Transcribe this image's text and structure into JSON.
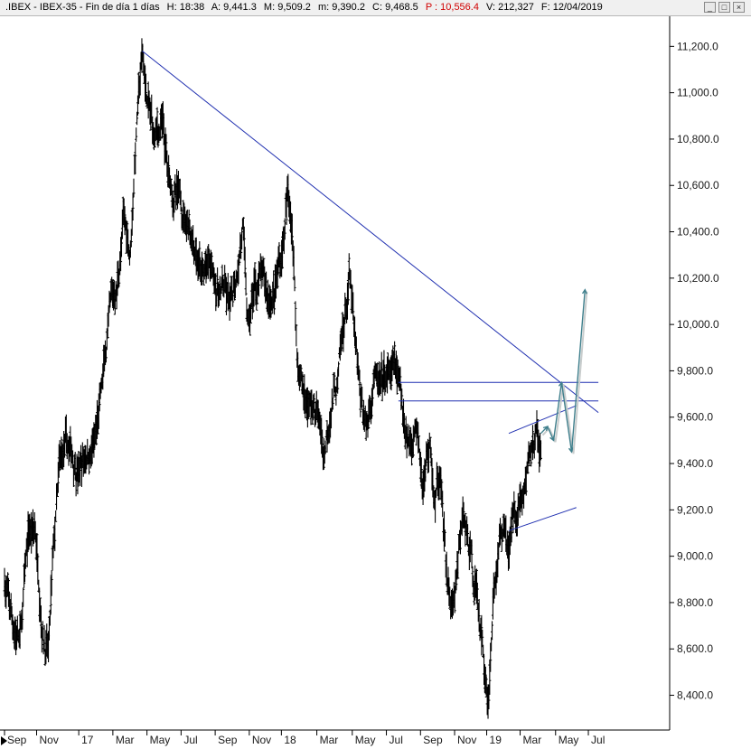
{
  "header": {
    "symbol": ".IBEX - IBEX-35 - Fin de día 1 días",
    "high": "H: 18:38",
    "open": "A: 9,441.3",
    "max": "M: 9,509.2",
    "min": "m: 9,390.2",
    "close": "C: 9,468.5",
    "p": "P : 10,556.4",
    "volume": "V: 212,327",
    "date": "F: 12/04/2019"
  },
  "window_controls": {
    "minimize": "_",
    "maximize": "□",
    "close": "×"
  },
  "chart_data": {
    "type": "bar",
    "subtype": "ohlc",
    "ylim": [
      8250,
      11330
    ],
    "y_ticks": [
      "11,200.0",
      "11,000.0",
      "10,800.0",
      "10,600.0",
      "10,400.0",
      "10,200.0",
      "10,000.0",
      "9,800.0",
      "9,600.0",
      "9,400.0",
      "9,200.0",
      "9,000.0",
      "8,800.0",
      "8,600.0",
      "8,400.0"
    ],
    "y_tick_values": [
      11200,
      11000,
      10800,
      10600,
      10400,
      10200,
      10000,
      9800,
      9600,
      9400,
      9200,
      9000,
      8800,
      8600,
      8400
    ],
    "x_ticks": [
      "Sep",
      "Nov",
      "17",
      "Mar",
      "May",
      "Jul",
      "Sep",
      "Nov",
      "18",
      "Mar",
      "May",
      "Jul",
      "Sep",
      "Nov",
      "19",
      "Mar",
      "May",
      "Jul"
    ],
    "x_tick_pos": [
      0.0,
      0.048,
      0.111,
      0.162,
      0.213,
      0.264,
      0.315,
      0.366,
      0.414,
      0.467,
      0.52,
      0.571,
      0.622,
      0.673,
      0.721,
      0.771,
      0.824,
      0.873
    ],
    "price_path": [
      [
        0.0,
        8900
      ],
      [
        0.012,
        8700
      ],
      [
        0.024,
        8650
      ],
      [
        0.036,
        9100
      ],
      [
        0.046,
        9100
      ],
      [
        0.058,
        8680
      ],
      [
        0.066,
        8600
      ],
      [
        0.072,
        8950
      ],
      [
        0.082,
        9350
      ],
      [
        0.09,
        9450
      ],
      [
        0.1,
        9420
      ],
      [
        0.112,
        9380
      ],
      [
        0.122,
        9450
      ],
      [
        0.135,
        9480
      ],
      [
        0.148,
        9760
      ],
      [
        0.158,
        10050
      ],
      [
        0.168,
        10150
      ],
      [
        0.178,
        10450
      ],
      [
        0.188,
        10320
      ],
      [
        0.198,
        10900
      ],
      [
        0.206,
        11150
      ],
      [
        0.214,
        10950
      ],
      [
        0.224,
        10800
      ],
      [
        0.236,
        10850
      ],
      [
        0.246,
        10600
      ],
      [
        0.256,
        10550
      ],
      [
        0.266,
        10500
      ],
      [
        0.276,
        10450
      ],
      [
        0.286,
        10350
      ],
      [
        0.296,
        10200
      ],
      [
        0.306,
        10250
      ],
      [
        0.318,
        10150
      ],
      [
        0.328,
        10150
      ],
      [
        0.338,
        10050
      ],
      [
        0.346,
        10200
      ],
      [
        0.356,
        10450
      ],
      [
        0.364,
        9950
      ],
      [
        0.374,
        10150
      ],
      [
        0.384,
        10200
      ],
      [
        0.394,
        10100
      ],
      [
        0.404,
        10150
      ],
      [
        0.414,
        10300
      ],
      [
        0.424,
        10550
      ],
      [
        0.43,
        10450
      ],
      [
        0.438,
        9850
      ],
      [
        0.448,
        9700
      ],
      [
        0.458,
        9650
      ],
      [
        0.468,
        9600
      ],
      [
        0.478,
        9450
      ],
      [
        0.488,
        9680
      ],
      [
        0.498,
        9750
      ],
      [
        0.508,
        10000
      ],
      [
        0.516,
        10200
      ],
      [
        0.524,
        9900
      ],
      [
        0.532,
        9650
      ],
      [
        0.542,
        9550
      ],
      [
        0.552,
        9800
      ],
      [
        0.562,
        9700
      ],
      [
        0.572,
        9750
      ],
      [
        0.584,
        9800
      ],
      [
        0.594,
        9650
      ],
      [
        0.606,
        9500
      ],
      [
        0.618,
        9600
      ],
      [
        0.626,
        9350
      ],
      [
        0.636,
        9500
      ],
      [
        0.644,
        9200
      ],
      [
        0.652,
        9400
      ],
      [
        0.66,
        8950
      ],
      [
        0.668,
        8750
      ],
      [
        0.676,
        8900
      ],
      [
        0.686,
        9150
      ],
      [
        0.696,
        9000
      ],
      [
        0.704,
        8900
      ],
      [
        0.712,
        8700
      ],
      [
        0.718,
        8500
      ],
      [
        0.724,
        8400
      ],
      [
        0.73,
        8800
      ],
      [
        0.738,
        9000
      ],
      [
        0.746,
        9150
      ],
      [
        0.754,
        9050
      ],
      [
        0.762,
        9200
      ],
      [
        0.77,
        9250
      ],
      [
        0.778,
        9300
      ],
      [
        0.786,
        9450
      ],
      [
        0.794,
        9500
      ],
      [
        0.802,
        9450
      ]
    ],
    "projection_path": [
      [
        0.802,
        9530
      ],
      [
        0.812,
        9560
      ],
      [
        0.821,
        9500
      ],
      [
        0.833,
        9750
      ],
      [
        0.848,
        9450
      ],
      [
        0.868,
        10150
      ]
    ],
    "trendlines": [
      {
        "x1": 0.206,
        "y1": 11180,
        "x2": 0.888,
        "y2": 9620
      },
      {
        "x1": 0.589,
        "y1": 9750,
        "x2": 0.888,
        "y2": 9750
      },
      {
        "x1": 0.589,
        "y1": 9670,
        "x2": 0.888,
        "y2": 9670
      },
      {
        "x1": 0.754,
        "y1": 9530,
        "x2": 0.855,
        "y2": 9650
      },
      {
        "x1": 0.754,
        "y1": 9110,
        "x2": 0.855,
        "y2": 9210
      }
    ]
  }
}
